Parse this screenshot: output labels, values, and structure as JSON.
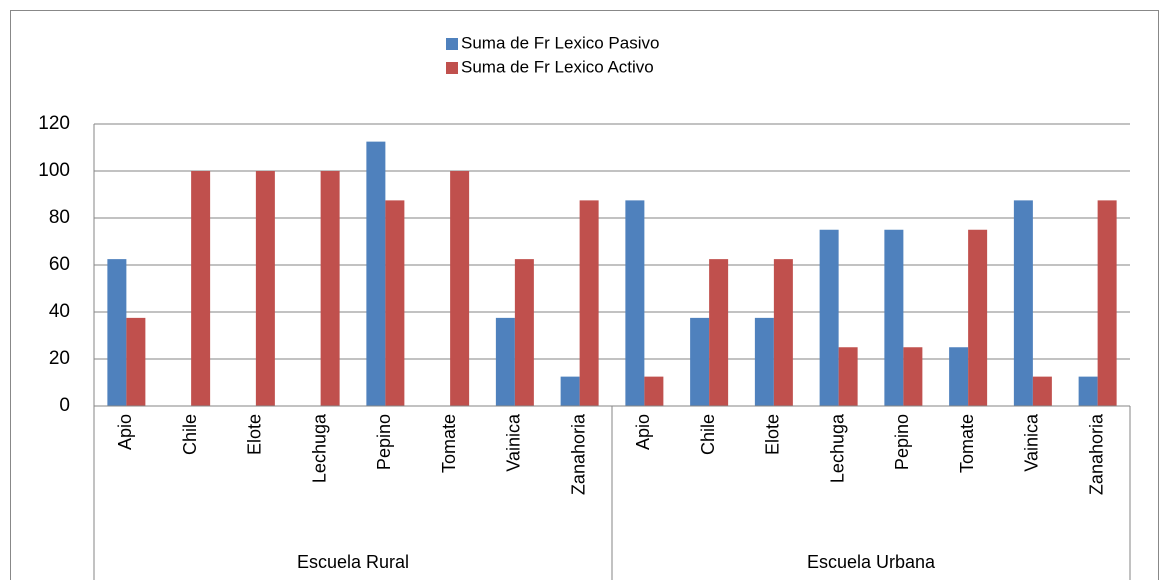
{
  "chart_data": {
    "type": "bar",
    "categories": [
      "Apio",
      "Chile",
      "Elote",
      "Lechuga",
      "Pepino",
      "Tomate",
      "Vainica",
      "Zanahoria",
      "Apio",
      "Chile",
      "Elote",
      "Lechuga",
      "Pepino",
      "Tomate",
      "Vainica",
      "Zanahoria"
    ],
    "category_groups": [
      "Escuela Rural",
      "Escuela Urbana"
    ],
    "series": [
      {
        "name": "Suma de Fr Lexico Pasivo",
        "color": "#4f81bd",
        "values": [
          62.5,
          0,
          0,
          0,
          112.5,
          0,
          37.5,
          12.5,
          87.5,
          37.5,
          37.5,
          75,
          75,
          25,
          87.5,
          12.5
        ]
      },
      {
        "name": "Suma de Fr Lexico Activo",
        "color": "#c0504d",
        "values": [
          37.5,
          100,
          100,
          100,
          87.5,
          100,
          62.5,
          87.5,
          12.5,
          62.5,
          62.5,
          25,
          25,
          75,
          12.5,
          87.5
        ]
      }
    ],
    "ylim": [
      0,
      120
    ],
    "yticks": [
      0,
      20,
      40,
      60,
      80,
      100,
      120
    ],
    "grid": true,
    "legend": "top"
  }
}
